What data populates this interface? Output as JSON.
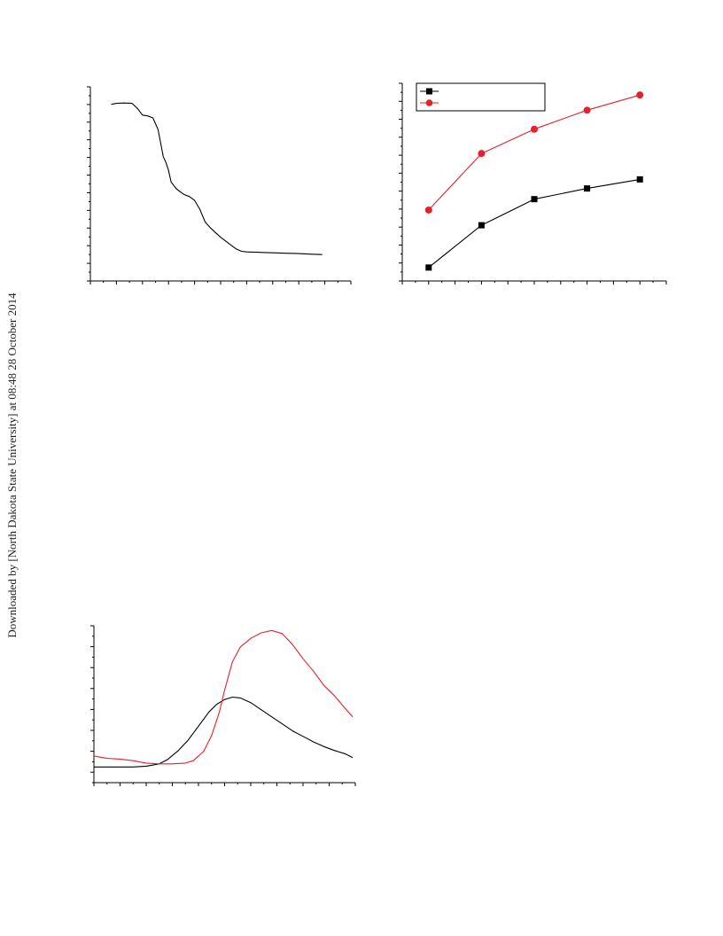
{
  "page": {
    "watermark": "Downloaded by [North Dakota State University] at 08:48 28 October 2014"
  },
  "chart_data": [
    {
      "type": "line",
      "title": "",
      "xlabel": "",
      "ylabel": "",
      "xlim": [
        0,
        100
      ],
      "ylim": [
        0,
        100
      ],
      "grid": false,
      "series": [
        {
          "color": "#000000",
          "x": [
            8,
            10,
            13,
            16,
            18,
            20,
            22,
            24,
            26,
            28,
            29,
            30,
            31,
            33,
            35,
            36,
            38,
            40,
            42,
            44,
            46,
            48,
            50,
            53,
            56,
            58,
            60,
            62,
            64,
            66,
            70,
            75,
            80,
            85,
            89
          ],
          "y": [
            91,
            91.5,
            91.7,
            91.5,
            89,
            85.5,
            85,
            84,
            78,
            64,
            61,
            57,
            51,
            47.5,
            45.5,
            44.5,
            43.5,
            41.5,
            37,
            30.5,
            27.5,
            25,
            22.5,
            19.5,
            16.5,
            15.3,
            15,
            14.9,
            14.8,
            14.7,
            14.5,
            14.3,
            14.1,
            13.8,
            13.6
          ]
        }
      ]
    },
    {
      "type": "line",
      "title": "",
      "xlabel": "",
      "ylabel": "",
      "xlim": [
        0,
        100
      ],
      "ylim": [
        0,
        100
      ],
      "grid": false,
      "legend": "top-left",
      "series": [
        {
          "color": "#000000",
          "marker": "square",
          "x": [
            10,
            30,
            50,
            70,
            90
          ],
          "y": [
            6.8,
            28.2,
            41.4,
            46.8,
            51.4
          ]
        },
        {
          "color": "#e8202a",
          "marker": "circle",
          "x": [
            10,
            30,
            50,
            70,
            90
          ],
          "y": [
            35.9,
            64.5,
            76.8,
            86.4,
            94.1
          ]
        }
      ]
    },
    {
      "type": "line",
      "title": "",
      "xlabel": "",
      "ylabel": "",
      "xlim": [
        0,
        100
      ],
      "ylim": [
        0,
        100
      ],
      "grid": false,
      "series": [
        {
          "color": "#000000",
          "x": [
            0,
            5,
            10,
            15,
            20,
            25,
            28,
            32,
            36,
            40,
            44,
            47,
            50,
            53,
            56,
            60,
            64,
            68,
            72,
            76,
            80,
            84,
            88,
            92,
            96,
            99
          ],
          "y": [
            10,
            10,
            10,
            10,
            10.5,
            12,
            14.5,
            20,
            27,
            36,
            45,
            50,
            53,
            54.5,
            54,
            51,
            46.5,
            42,
            37.5,
            33,
            29.5,
            26,
            23,
            20.5,
            18.5,
            16
          ]
        },
        {
          "color": "#e8202a",
          "x": [
            0,
            5,
            10,
            15,
            20,
            25,
            30,
            35,
            38,
            42,
            45,
            48,
            50,
            53,
            56,
            60,
            64,
            68,
            72,
            76,
            80,
            84,
            88,
            92,
            96,
            99
          ],
          "y": [
            17,
            15.5,
            15,
            14,
            12.5,
            12,
            12,
            12.5,
            14,
            20,
            30,
            45,
            59,
            77,
            86.5,
            92,
            95.5,
            97,
            95,
            88,
            79,
            71,
            62,
            55.5,
            47.5,
            42
          ]
        }
      ]
    }
  ]
}
